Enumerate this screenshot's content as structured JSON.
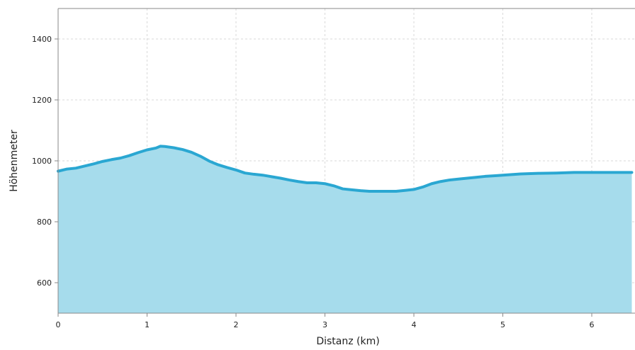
{
  "chart_data": {
    "type": "area",
    "title": "",
    "xlabel": "Distanz (km)",
    "ylabel": "Höhenmeter",
    "xlim": [
      0,
      6.45
    ],
    "ylim": [
      500,
      1500
    ],
    "x_ticks": [
      0,
      1,
      2,
      3,
      4,
      5,
      6
    ],
    "y_ticks": [
      600,
      800,
      1000,
      1200,
      1400
    ],
    "grid": true,
    "legend": "none",
    "colors": {
      "area_fill": "#a6dcec",
      "line": "#2aa7d2",
      "grid": "#d9d9d9",
      "axis": "#8a8a8a"
    },
    "series": [
      {
        "x": [
          0,
          0.1,
          0.2,
          0.3,
          0.4,
          0.5,
          0.6,
          0.7,
          0.8,
          0.9,
          1.0,
          1.1,
          1.15,
          1.2,
          1.3,
          1.4,
          1.5,
          1.6,
          1.7,
          1.8,
          1.9,
          2.0,
          2.1,
          2.2,
          2.3,
          2.4,
          2.5,
          2.6,
          2.7,
          2.8,
          2.9,
          3.0,
          3.1,
          3.2,
          3.3,
          3.4,
          3.5,
          3.6,
          3.7,
          3.8,
          3.9,
          4.0,
          4.1,
          4.2,
          4.3,
          4.4,
          4.5,
          4.6,
          4.7,
          4.8,
          4.9,
          5.0,
          5.2,
          5.4,
          5.6,
          5.8,
          6.0,
          6.2,
          6.4,
          6.45
        ],
        "y": [
          966,
          973,
          976,
          983,
          990,
          998,
          1004,
          1009,
          1017,
          1027,
          1036,
          1042,
          1048,
          1047,
          1043,
          1037,
          1028,
          1015,
          999,
          987,
          978,
          970,
          960,
          956,
          953,
          948,
          943,
          937,
          932,
          928,
          928,
          925,
          918,
          908,
          905,
          902,
          900,
          900,
          900,
          900,
          903,
          906,
          914,
          925,
          932,
          937,
          940,
          943,
          946,
          949,
          951,
          953,
          957,
          959,
          960,
          962,
          962,
          962,
          962,
          962
        ]
      }
    ]
  }
}
